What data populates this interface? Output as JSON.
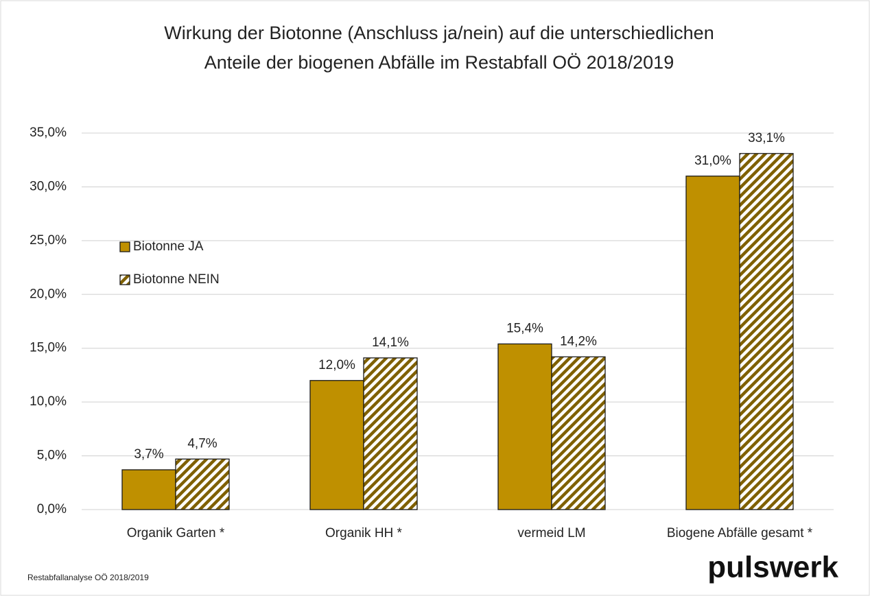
{
  "chart_data": {
    "type": "bar",
    "title": [
      "Wirkung der Biotonne (Anschluss ja/nein) auf die unterschiedlichen",
      "Anteile der biogenen Abfälle im Restabfall OÖ 2018/2019"
    ],
    "categories": [
      "Organik Garten *",
      "Organik HH *",
      "vermeid LM",
      "Biogene Abfälle gesamt *"
    ],
    "series": [
      {
        "name": "Biotonne JA",
        "color": "#bf9000",
        "hatch": false,
        "values": [
          3.7,
          12.0,
          15.4,
          31.0
        ],
        "value_labels": [
          "3,7%",
          "12,0%",
          "15,4%",
          "31,0%"
        ]
      },
      {
        "name": "Biotonne NEIN",
        "color": "#7f6000",
        "hatch": true,
        "values": [
          4.7,
          14.1,
          14.2,
          33.1
        ],
        "value_labels": [
          "4,7%",
          "14,1%",
          "14,2%",
          "33,1%"
        ]
      }
    ],
    "ylim": [
      0,
      35
    ],
    "yticks": [
      {
        "value": 0,
        "label": "0,0%"
      },
      {
        "value": 5,
        "label": "5,0%"
      },
      {
        "value": 10,
        "label": "10,0%"
      },
      {
        "value": 15,
        "label": "15,0%"
      },
      {
        "value": 20,
        "label": "20,0%"
      },
      {
        "value": 25,
        "label": "25,0%"
      },
      {
        "value": 30,
        "label": "30,0%"
      },
      {
        "value": 35,
        "label": "35,0%"
      }
    ],
    "grid": true,
    "legend": "left",
    "source": "Restabfallanalyse OÖ 2018/2019",
    "logo": "pulswerk"
  }
}
